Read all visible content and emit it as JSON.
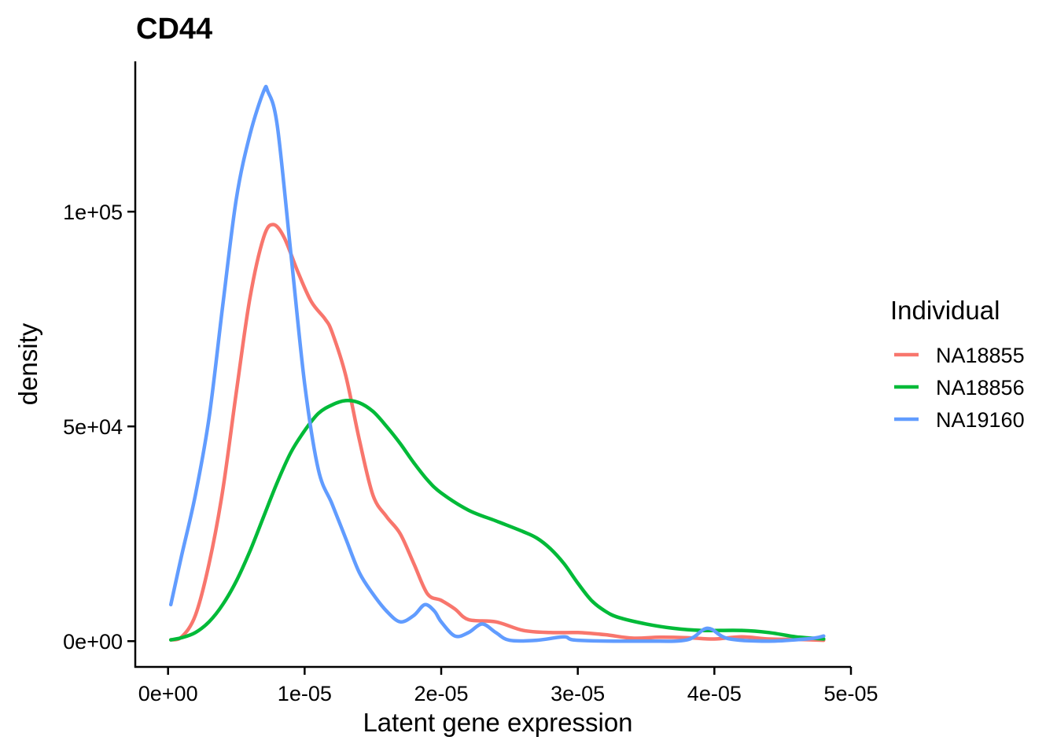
{
  "chart_data": {
    "type": "line",
    "title": "CD44",
    "xlabel": "Latent gene expression",
    "ylabel": "density",
    "xlim": [
      -2.4e-06,
      5e-05
    ],
    "ylim": [
      -6000,
      135000
    ],
    "x_ticks": [
      0,
      1e-05,
      2e-05,
      3e-05,
      4e-05,
      5e-05
    ],
    "x_tick_labels": [
      "0e+00",
      "1e-05",
      "2e-05",
      "3e-05",
      "4e-05",
      "5e-05"
    ],
    "y_ticks": [
      0,
      50000,
      100000
    ],
    "y_tick_labels": [
      "0e+00",
      "5e+04",
      "1e+05"
    ],
    "grid": false,
    "legend": {
      "title": "Individual",
      "position": "right"
    },
    "series": [
      {
        "name": "NA18855",
        "color": "#F8766D",
        "points": [
          [
            2e-07,
            300
          ],
          [
            1e-06,
            1000
          ],
          [
            2e-06,
            6000
          ],
          [
            3e-06,
            18000
          ],
          [
            4e-06,
            35000
          ],
          [
            5e-06,
            58000
          ],
          [
            6e-06,
            80000
          ],
          [
            7e-06,
            94000
          ],
          [
            7.7e-06,
            97000
          ],
          [
            8.5e-06,
            94000
          ],
          [
            9.5e-06,
            86000
          ],
          [
            1.05e-05,
            79000
          ],
          [
            1.15e-05,
            75000
          ],
          [
            1.2e-05,
            72000
          ],
          [
            1.3e-05,
            62000
          ],
          [
            1.4e-05,
            47000
          ],
          [
            1.5e-05,
            34000
          ],
          [
            1.6e-05,
            29000
          ],
          [
            1.7e-05,
            25000
          ],
          [
            1.8e-05,
            18000
          ],
          [
            1.9e-05,
            11000
          ],
          [
            2e-05,
            9500
          ],
          [
            2.1e-05,
            7500
          ],
          [
            2.2e-05,
            5000
          ],
          [
            2.4e-05,
            4500
          ],
          [
            2.6e-05,
            2500
          ],
          [
            2.8e-05,
            2000
          ],
          [
            3e-05,
            2000
          ],
          [
            3.2e-05,
            1500
          ],
          [
            3.4e-05,
            700
          ],
          [
            3.6e-05,
            900
          ],
          [
            3.8e-05,
            800
          ],
          [
            4e-05,
            500
          ],
          [
            4.2e-05,
            1000
          ],
          [
            4.4e-05,
            500
          ],
          [
            4.6e-05,
            400
          ],
          [
            4.8e-05,
            200
          ]
        ]
      },
      {
        "name": "NA18856",
        "color": "#00BA38",
        "points": [
          [
            2e-07,
            300
          ],
          [
            1e-06,
            800
          ],
          [
            2e-06,
            2000
          ],
          [
            3e-06,
            4500
          ],
          [
            4e-06,
            8500
          ],
          [
            5e-06,
            14000
          ],
          [
            6e-06,
            21000
          ],
          [
            7e-06,
            29000
          ],
          [
            8e-06,
            37000
          ],
          [
            9e-06,
            44000
          ],
          [
            1e-05,
            49000
          ],
          [
            1.1e-05,
            53000
          ],
          [
            1.2e-05,
            55000
          ],
          [
            1.3e-05,
            56000
          ],
          [
            1.4e-05,
            55500
          ],
          [
            1.5e-05,
            53500
          ],
          [
            1.6e-05,
            50000
          ],
          [
            1.7e-05,
            46000
          ],
          [
            1.8e-05,
            41500
          ],
          [
            1.9e-05,
            37500
          ],
          [
            2e-05,
            34500
          ],
          [
            2.2e-05,
            30500
          ],
          [
            2.4e-05,
            28000
          ],
          [
            2.6e-05,
            25500
          ],
          [
            2.7e-05,
            24000
          ],
          [
            2.8e-05,
            21500
          ],
          [
            2.9e-05,
            18000
          ],
          [
            3e-05,
            13500
          ],
          [
            3.1e-05,
            9500
          ],
          [
            3.2e-05,
            7000
          ],
          [
            3.3e-05,
            5500
          ],
          [
            3.5e-05,
            4000
          ],
          [
            3.7e-05,
            3000
          ],
          [
            3.9e-05,
            2500
          ],
          [
            4.2e-05,
            2500
          ],
          [
            4.4e-05,
            2000
          ],
          [
            4.6e-05,
            1000
          ],
          [
            4.8e-05,
            500
          ]
        ]
      },
      {
        "name": "NA19160",
        "color": "#619CFF",
        "points": [
          [
            2e-07,
            8500
          ],
          [
            1e-06,
            20000
          ],
          [
            2e-06,
            34000
          ],
          [
            3e-06,
            52000
          ],
          [
            4e-06,
            78000
          ],
          [
            5e-06,
            103000
          ],
          [
            6e-06,
            118000
          ],
          [
            7e-06,
            128000
          ],
          [
            7.3e-06,
            128000
          ],
          [
            8e-06,
            120000
          ],
          [
            9e-06,
            90000
          ],
          [
            1e-05,
            60000
          ],
          [
            1.1e-05,
            40000
          ],
          [
            1.2e-05,
            32000
          ],
          [
            1.3e-05,
            24000
          ],
          [
            1.4e-05,
            16000
          ],
          [
            1.5e-05,
            11000
          ],
          [
            1.6e-05,
            7000
          ],
          [
            1.7e-05,
            4500
          ],
          [
            1.8e-05,
            6000
          ],
          [
            1.88e-05,
            8500
          ],
          [
            1.95e-05,
            7000
          ],
          [
            2e-05,
            4500
          ],
          [
            2.1e-05,
            1200
          ],
          [
            2.2e-05,
            2000
          ],
          [
            2.3e-05,
            4000
          ],
          [
            2.4e-05,
            2000
          ],
          [
            2.5e-05,
            200
          ],
          [
            2.7e-05,
            200
          ],
          [
            2.9e-05,
            1000
          ],
          [
            3e-05,
            200
          ],
          [
            3.5e-05,
            0
          ],
          [
            3.8e-05,
            300
          ],
          [
            3.95e-05,
            3000
          ],
          [
            4.1e-05,
            600
          ],
          [
            4.4e-05,
            0
          ],
          [
            4.7e-05,
            600
          ],
          [
            4.8e-05,
            1200
          ]
        ]
      }
    ]
  }
}
